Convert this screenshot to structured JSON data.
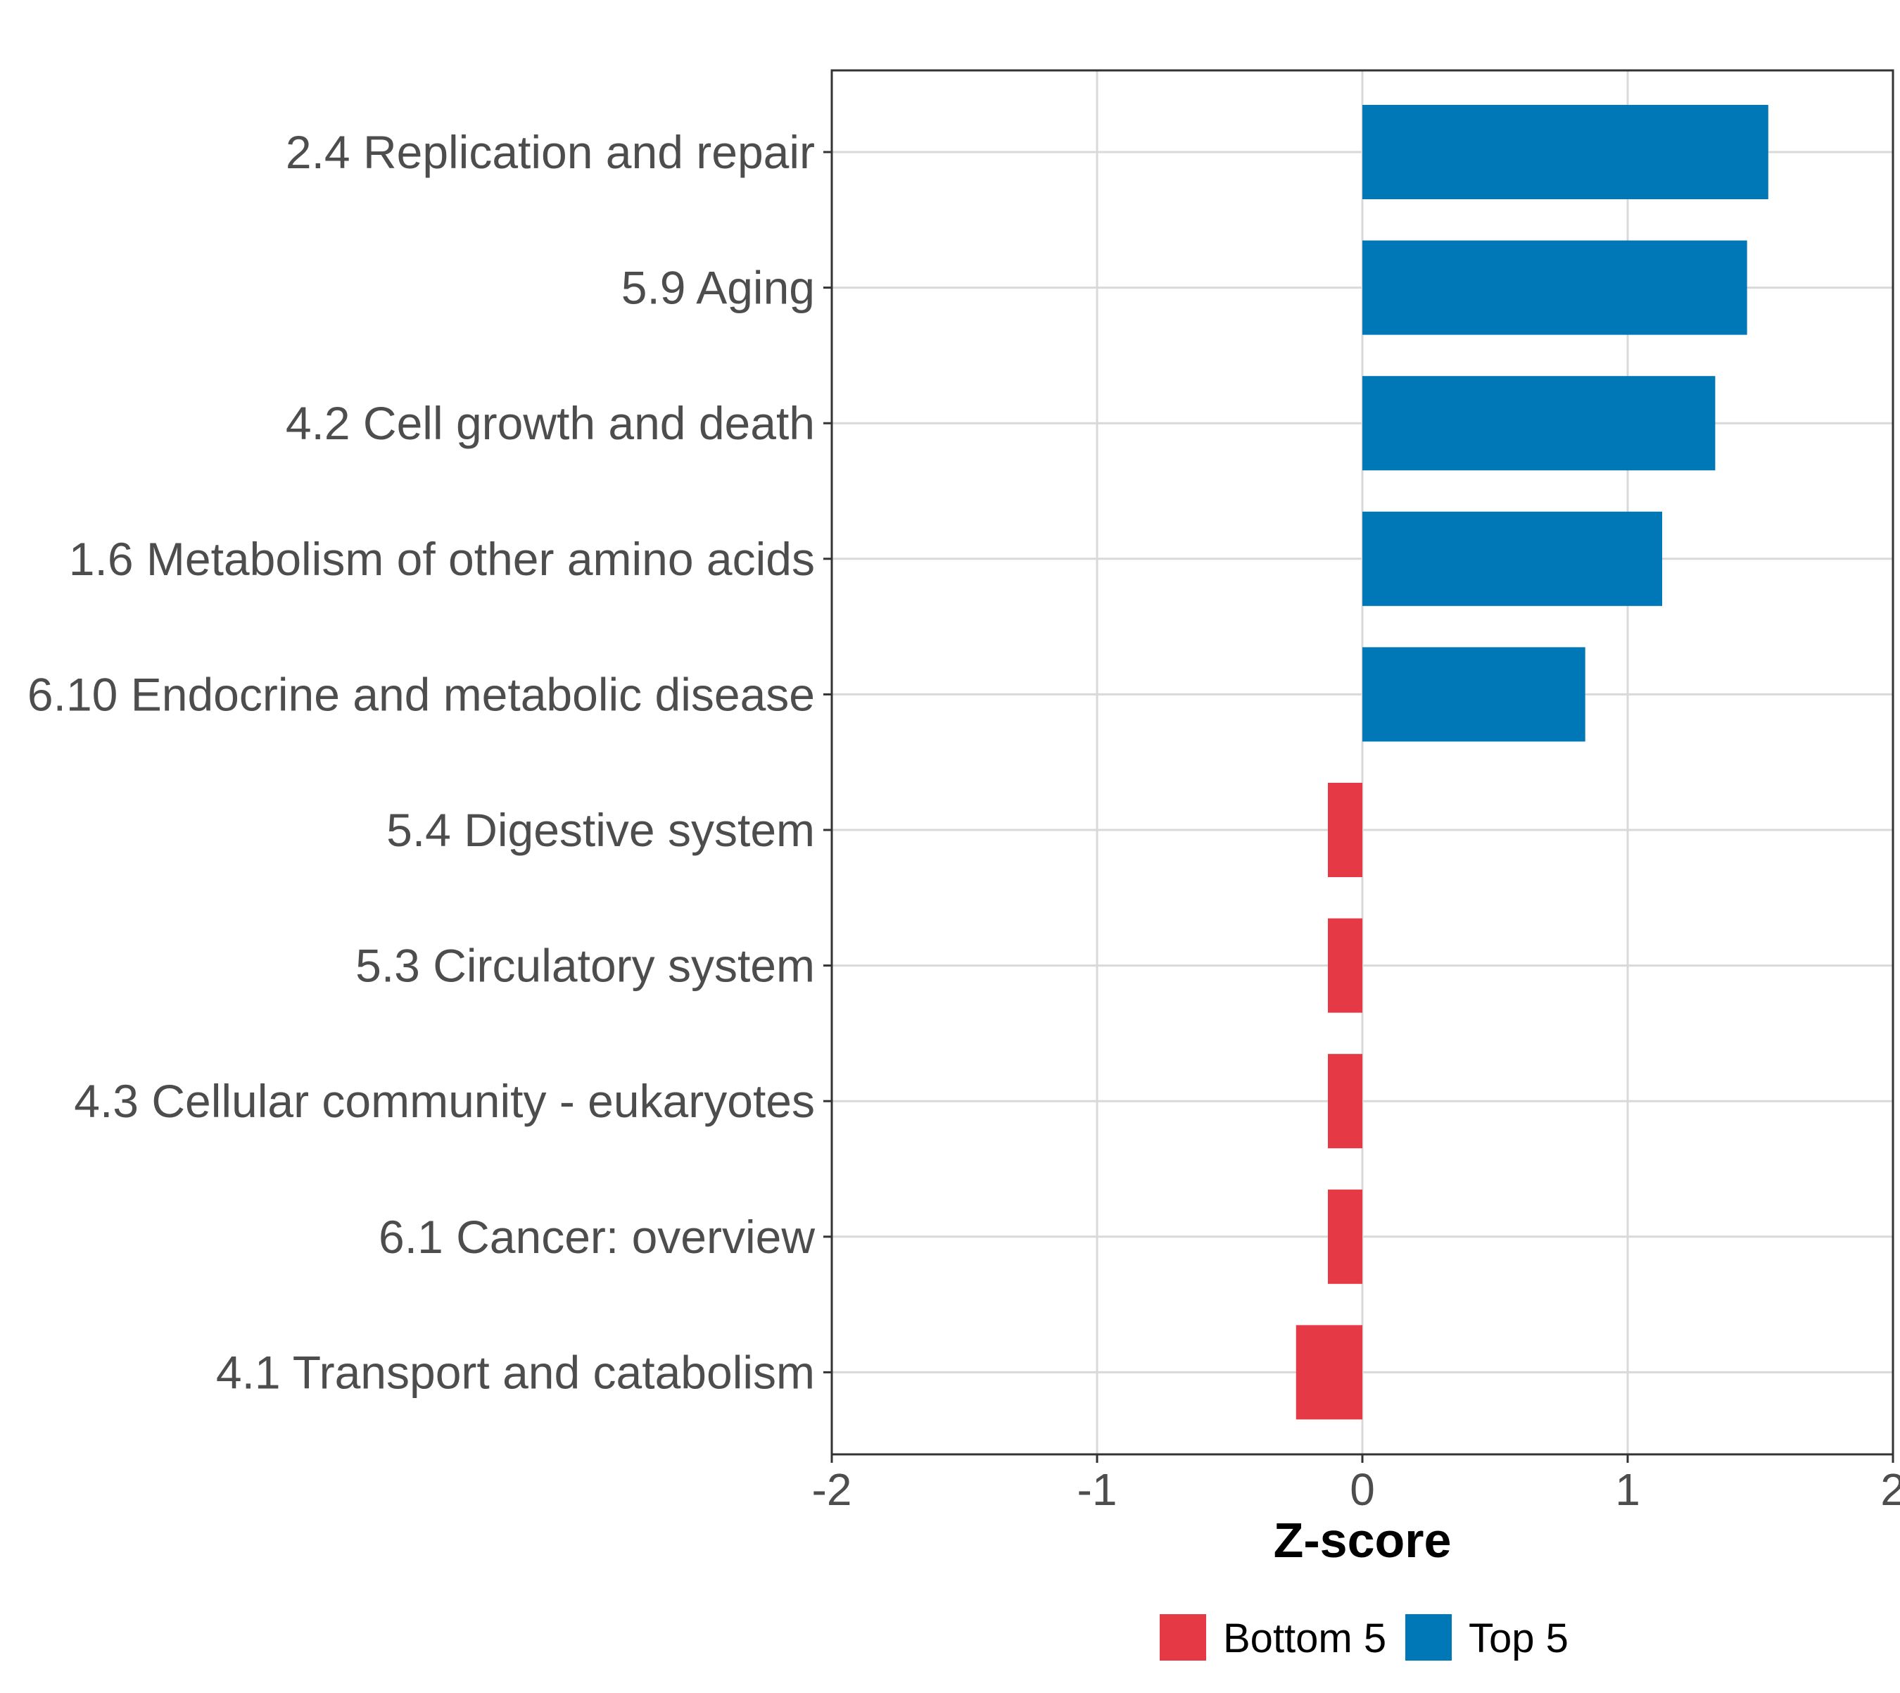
{
  "chart_data": {
    "type": "bar",
    "orientation": "horizontal",
    "title": "",
    "xlabel": "Z-score",
    "ylabel": "",
    "xlim": [
      -2,
      2
    ],
    "x_ticks": [
      -2,
      -1,
      0,
      1,
      2
    ],
    "x_tick_labels": [
      "-2",
      "-1",
      "0",
      "1",
      "2"
    ],
    "grid": true,
    "legend_position": "bottom",
    "categories": [
      "2.4 Replication and repair",
      "5.9 Aging",
      "4.2 Cell growth and death",
      "1.6 Metabolism of other amino acids",
      "6.10 Endocrine and metabolic disease",
      "5.4 Digestive system",
      "5.3 Circulatory system",
      "4.3 Cellular community - eukaryotes",
      "6.1 Cancer: overview",
      "4.1 Transport and catabolism"
    ],
    "values": [
      1.53,
      1.45,
      1.33,
      1.13,
      0.84,
      -0.13,
      -0.13,
      -0.13,
      -0.13,
      -0.25
    ],
    "groups": [
      "Top 5",
      "Top 5",
      "Top 5",
      "Top 5",
      "Top 5",
      "Bottom 5",
      "Bottom 5",
      "Bottom 5",
      "Bottom 5",
      "Bottom 5"
    ],
    "legend": [
      {
        "name": "Bottom 5",
        "color": "#e63946"
      },
      {
        "name": "Top 5",
        "color": "#0077b6"
      }
    ]
  }
}
